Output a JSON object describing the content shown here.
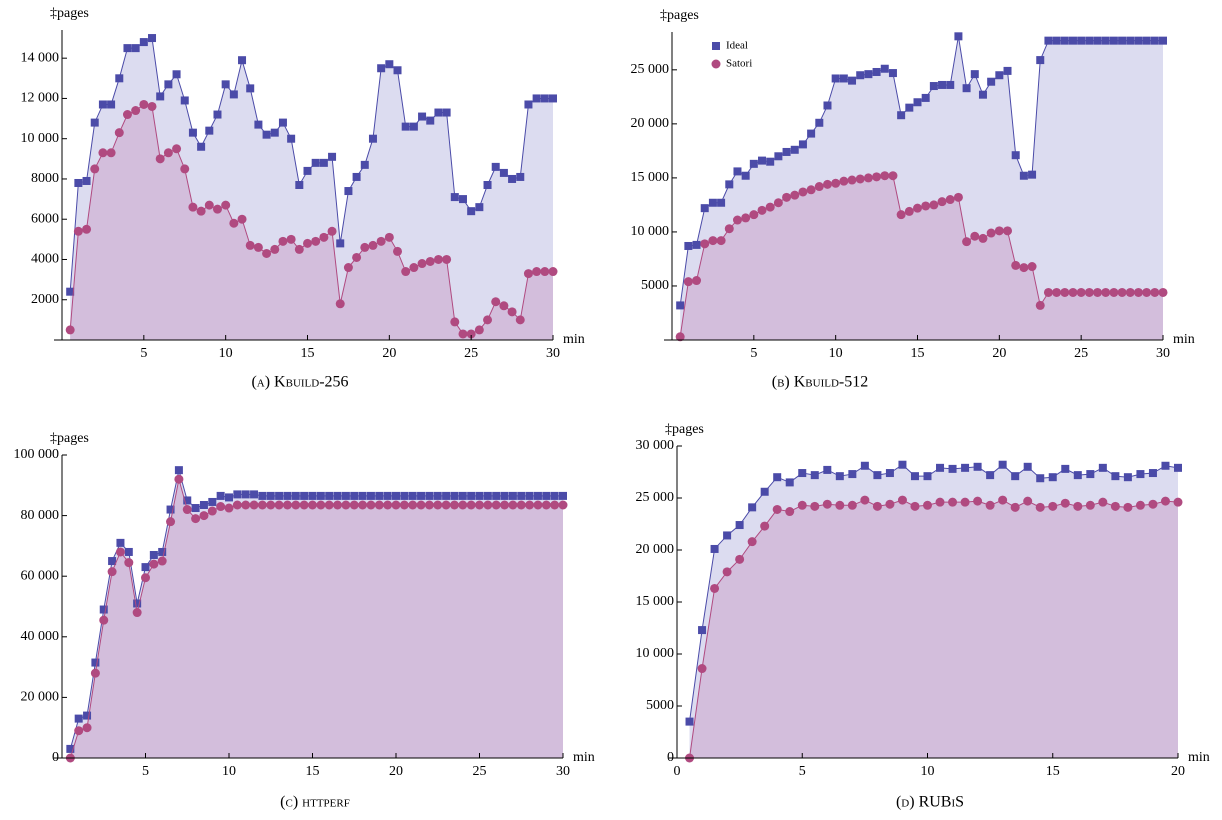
{
  "chart_data": [
    {
      "type": "line",
      "area": true,
      "title": "(a) Kbuild-256",
      "ylabel": "‡pages",
      "xlabel": "min",
      "xlim": [
        0,
        30
      ],
      "xticks": [
        5,
        10,
        15,
        20,
        25,
        30
      ],
      "ylim": [
        0,
        15400
      ],
      "yticks": [
        2000,
        4000,
        6000,
        8000,
        {
          "value": 10000,
          "label": "10 000"
        },
        {
          "value": 12000,
          "label": "12 000"
        },
        {
          "value": 14000,
          "label": "14 000"
        }
      ],
      "x": [
        0.5,
        1,
        1.5,
        2,
        2.5,
        3,
        3.5,
        4,
        4.5,
        5,
        5.5,
        6,
        6.5,
        7,
        7.5,
        8,
        8.5,
        9,
        9.5,
        10,
        10.5,
        11,
        11.5,
        12,
        12.5,
        13,
        13.5,
        14,
        14.5,
        15,
        15.5,
        16,
        16.5,
        17,
        17.5,
        18,
        18.5,
        19,
        19.5,
        20,
        20.5,
        21,
        21.5,
        22,
        22.5,
        23,
        23.5,
        24,
        24.5,
        25,
        25.5,
        26,
        26.5,
        27,
        27.5,
        28,
        28.5,
        29,
        29.5,
        30
      ],
      "series": [
        {
          "name": "Ideal",
          "color": "#4b4ba8",
          "fill": "#dcdcf0",
          "marker": "square",
          "values": [
            2400,
            7800,
            7900,
            10800,
            11700,
            11700,
            13000,
            14500,
            14500,
            14800,
            15000,
            12100,
            12700,
            13200,
            11900,
            10300,
            9600,
            10400,
            11200,
            12700,
            12200,
            13900,
            12500,
            10700,
            10200,
            10300,
            10800,
            10000,
            7700,
            8400,
            8800,
            8800,
            9100,
            4800,
            7400,
            8100,
            8700,
            10000,
            13500,
            13700,
            13400,
            10600,
            10600,
            11100,
            10900,
            11300,
            11300,
            7100,
            7000,
            6400,
            6600,
            7700,
            8600,
            8300,
            8000,
            8100,
            11700,
            12000,
            12000,
            12000
          ]
        },
        {
          "name": "Satori",
          "color": "#b04a80",
          "fill": "#d3bedc",
          "marker": "circle",
          "values": [
            500,
            5400,
            5500,
            8500,
            9300,
            9300,
            10300,
            11200,
            11400,
            11700,
            11600,
            9000,
            9300,
            9500,
            8500,
            6600,
            6400,
            6700,
            6500,
            6700,
            5800,
            6000,
            4700,
            4600,
            4300,
            4500,
            4900,
            5000,
            4500,
            4800,
            4900,
            5100,
            5400,
            1800,
            3600,
            4100,
            4600,
            4700,
            4900,
            5100,
            4400,
            3400,
            3600,
            3800,
            3900,
            4000,
            4000,
            900,
            300,
            300,
            500,
            1000,
            1900,
            1700,
            1400,
            1000,
            3300,
            3400,
            3400,
            3400
          ]
        }
      ]
    },
    {
      "type": "line",
      "area": true,
      "title": "(b) Kbuild-512",
      "ylabel": "‡pages",
      "xlabel": "min",
      "legend": "upper left",
      "xlim": [
        0,
        30
      ],
      "xticks": [
        5,
        10,
        15,
        20,
        25,
        30
      ],
      "ylim": [
        0,
        28500
      ],
      "yticks": [
        5000,
        {
          "value": 10000,
          "label": "10 000"
        },
        {
          "value": 15000,
          "label": "15 000"
        },
        {
          "value": 20000,
          "label": "20 000"
        },
        {
          "value": 25000,
          "label": "25 000"
        }
      ],
      "x": [
        0.5,
        1,
        1.5,
        2,
        2.5,
        3,
        3.5,
        4,
        4.5,
        5,
        5.5,
        6,
        6.5,
        7,
        7.5,
        8,
        8.5,
        9,
        9.5,
        10,
        10.5,
        11,
        11.5,
        12,
        12.5,
        13,
        13.5,
        14,
        14.5,
        15,
        15.5,
        16,
        16.5,
        17,
        17.5,
        18,
        18.5,
        19,
        19.5,
        20,
        20.5,
        21,
        21.5,
        22,
        22.5,
        23,
        23.5,
        24,
        24.5,
        25,
        25.5,
        26,
        26.5,
        27,
        27.5,
        28,
        28.5,
        29,
        29.5,
        30
      ],
      "series": [
        {
          "name": "Ideal",
          "color": "#4b4ba8",
          "fill": "#dcdcf0",
          "marker": "square",
          "values": [
            3200,
            8700,
            8800,
            12200,
            12700,
            12700,
            14400,
            15600,
            15200,
            16300,
            16600,
            16500,
            17000,
            17400,
            17600,
            18100,
            19100,
            20100,
            21700,
            24200,
            24200,
            24000,
            24500,
            24600,
            24800,
            25100,
            24700,
            20800,
            21500,
            22000,
            22400,
            23500,
            23600,
            23600,
            28100,
            23300,
            24600,
            22700,
            23900,
            24500,
            24900,
            17100,
            15200,
            15300,
            25900,
            27700,
            27700,
            27700,
            27700,
            27700,
            27700,
            27700,
            27700,
            27700,
            27700,
            27700,
            27700,
            27700,
            27700,
            27700
          ]
        },
        {
          "name": "Satori",
          "color": "#b04a80",
          "fill": "#d3bedc",
          "marker": "circle",
          "values": [
            300,
            5400,
            5500,
            8900,
            9200,
            9200,
            10300,
            11100,
            11300,
            11600,
            12000,
            12300,
            12700,
            13200,
            13400,
            13700,
            13900,
            14200,
            14400,
            14500,
            14700,
            14800,
            14900,
            15000,
            15100,
            15200,
            15200,
            11600,
            11900,
            12200,
            12400,
            12500,
            12800,
            13000,
            13200,
            9100,
            9600,
            9400,
            9900,
            10100,
            10100,
            6900,
            6700,
            6800,
            3200,
            4400,
            4400,
            4400,
            4400,
            4400,
            4400,
            4400,
            4400,
            4400,
            4400,
            4400,
            4400,
            4400,
            4400,
            4400
          ]
        }
      ]
    },
    {
      "type": "line",
      "area": true,
      "title": "(c) httperf",
      "ylabel": "‡pages",
      "xlabel": "min",
      "xlim": [
        0,
        30
      ],
      "xticks": [
        5,
        10,
        15,
        20,
        25,
        30
      ],
      "ylim": [
        0,
        100000
      ],
      "yticks": [
        0,
        {
          "value": 20000,
          "label": "20 000"
        },
        {
          "value": 40000,
          "label": "40 000"
        },
        {
          "value": 60000,
          "label": "60 000"
        },
        {
          "value": 80000,
          "label": "80 000"
        },
        {
          "value": 100000,
          "label": "100 000"
        }
      ],
      "x": [
        0.5,
        1,
        1.5,
        2,
        2.5,
        3,
        3.5,
        4,
        4.5,
        5,
        5.5,
        6,
        6.5,
        7,
        7.5,
        8,
        8.5,
        9,
        9.5,
        10,
        10.5,
        11,
        11.5,
        12,
        12.5,
        13,
        13.5,
        14,
        14.5,
        15,
        15.5,
        16,
        16.5,
        17,
        17.5,
        18,
        18.5,
        19,
        19.5,
        20,
        20.5,
        21,
        21.5,
        22,
        22.5,
        23,
        23.5,
        24,
        24.5,
        25,
        25.5,
        26,
        26.5,
        27,
        27.5,
        28,
        28.5,
        29,
        29.5,
        30
      ],
      "series": [
        {
          "name": "Ideal",
          "color": "#4b4ba8",
          "fill": "#dcdcf0",
          "marker": "square",
          "values": [
            3000,
            13000,
            14000,
            31500,
            49000,
            65000,
            71000,
            68000,
            51000,
            63000,
            67000,
            68000,
            82000,
            95000,
            85000,
            82500,
            83500,
            84500,
            86500,
            86000,
            87000,
            87000,
            87000,
            86500,
            86500,
            86500,
            86500,
            86500,
            86500,
            86500,
            86500,
            86500,
            86500,
            86500,
            86500,
            86500,
            86500,
            86500,
            86500,
            86500,
            86500,
            86500,
            86500,
            86500,
            86500,
            86500,
            86500,
            86500,
            86500,
            86500,
            86500,
            86500,
            86500,
            86500,
            86500,
            86500,
            86500,
            86500,
            86500,
            86500
          ]
        },
        {
          "name": "Satori",
          "color": "#b04a80",
          "fill": "#d3bedc",
          "marker": "circle",
          "values": [
            0,
            9000,
            10000,
            28000,
            45500,
            61500,
            68000,
            64500,
            48000,
            59500,
            64000,
            65000,
            78000,
            92000,
            82000,
            79000,
            80000,
            81500,
            83000,
            82500,
            83500,
            83500,
            83500,
            83500,
            83500,
            83500,
            83500,
            83500,
            83500,
            83500,
            83500,
            83500,
            83500,
            83500,
            83500,
            83500,
            83500,
            83500,
            83500,
            83500,
            83500,
            83500,
            83500,
            83500,
            83500,
            83500,
            83500,
            83500,
            83500,
            83500,
            83500,
            83500,
            83500,
            83500,
            83500,
            83500,
            83500,
            83500,
            83500,
            83500
          ]
        }
      ]
    },
    {
      "type": "line",
      "area": true,
      "title": "(d) RUBiS",
      "ylabel": "‡pages",
      "xlabel": "min",
      "xlim": [
        0,
        20
      ],
      "xticks": [
        0,
        5,
        10,
        15,
        20
      ],
      "ylim": [
        0,
        30000
      ],
      "yticks": [
        0,
        5000,
        {
          "value": 10000,
          "label": "10 000"
        },
        {
          "value": 15000,
          "label": "15 000"
        },
        {
          "value": 20000,
          "label": "20 000"
        },
        {
          "value": 25000,
          "label": "25 000"
        },
        {
          "value": 30000,
          "label": "30 000"
        }
      ],
      "x": [
        0.5,
        1,
        1.5,
        2,
        2.5,
        3,
        3.5,
        4,
        4.5,
        5,
        5.5,
        6,
        6.5,
        7,
        7.5,
        8,
        8.5,
        9,
        9.5,
        10,
        10.5,
        11,
        11.5,
        12,
        12.5,
        13,
        13.5,
        14,
        14.5,
        15,
        15.5,
        16,
        16.5,
        17,
        17.5,
        18,
        18.5,
        19,
        19.5,
        20
      ],
      "series": [
        {
          "name": "Ideal",
          "color": "#4b4ba8",
          "fill": "#dcdcf0",
          "marker": "square",
          "values": [
            3500,
            12300,
            20100,
            21400,
            22400,
            24100,
            25600,
            27000,
            26500,
            27400,
            27200,
            27700,
            27100,
            27300,
            28100,
            27200,
            27400,
            28200,
            27100,
            27100,
            27900,
            27800,
            27900,
            28000,
            27200,
            28200,
            27100,
            28000,
            26900,
            27000,
            27800,
            27200,
            27300,
            27900,
            27100,
            27000,
            27300,
            27400,
            28100,
            27900
          ]
        },
        {
          "name": "Satori",
          "color": "#b04a80",
          "fill": "#d3bedc",
          "marker": "circle",
          "values": [
            0,
            8600,
            16300,
            17900,
            19100,
            20800,
            22300,
            23900,
            23700,
            24300,
            24200,
            24400,
            24300,
            24300,
            24800,
            24200,
            24400,
            24800,
            24200,
            24300,
            24600,
            24600,
            24600,
            24700,
            24300,
            24800,
            24100,
            24700,
            24100,
            24200,
            24500,
            24200,
            24300,
            24600,
            24200,
            24100,
            24300,
            24400,
            24700,
            24600
          ]
        }
      ]
    }
  ]
}
